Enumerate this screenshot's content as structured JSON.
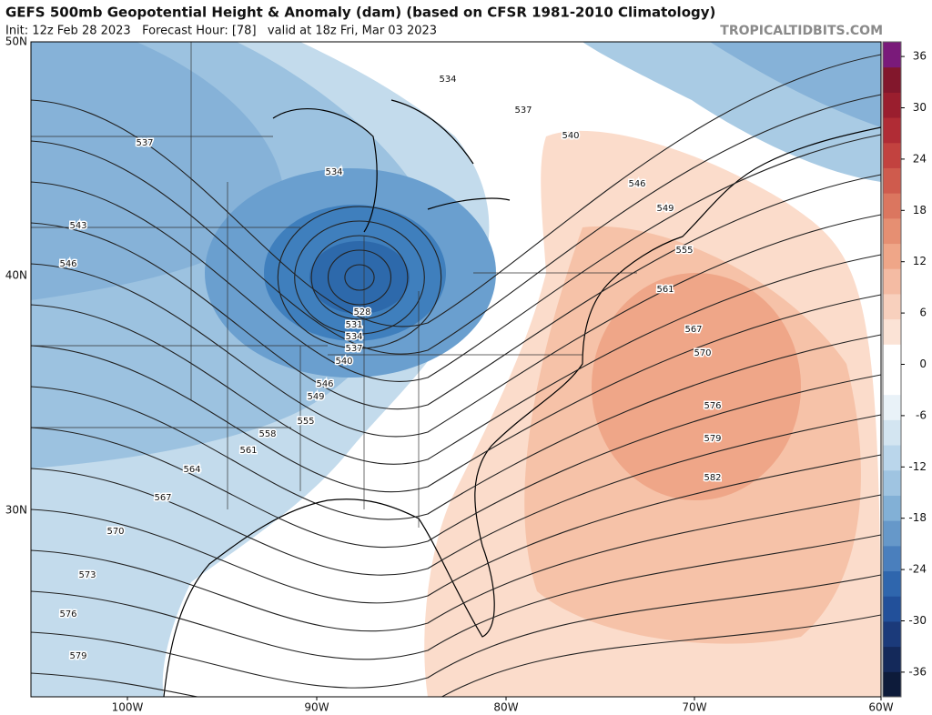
{
  "header": {
    "title": "GEFS 500mb Geopotential Height & Anomaly (dam) (based on CFSR 1981-2010 Climatology)",
    "subtitle": "Init: 12z Feb 28 2023   Forecast Hour: [78]   valid at 18z Fri, Mar 03 2023",
    "watermark": "TROPICALTIDBITS.COM"
  },
  "map": {
    "latitude_labels": [
      "50N",
      "40N",
      "30N"
    ],
    "longitude_labels": [
      "100W",
      "90W",
      "80W",
      "70W",
      "60W"
    ],
    "contour_labels": [
      534,
      537,
      540,
      537,
      534,
      546,
      549,
      543,
      555,
      546,
      561,
      528,
      531,
      534,
      537,
      540,
      567,
      570,
      546,
      549,
      555,
      576,
      579,
      558,
      561,
      582,
      564,
      567,
      570,
      573,
      576,
      579
    ]
  },
  "colorbar": {
    "ticks": [
      36,
      30,
      24,
      18,
      12,
      6,
      0,
      -6,
      -12,
      -18,
      -24,
      -30,
      -36
    ]
  }
}
